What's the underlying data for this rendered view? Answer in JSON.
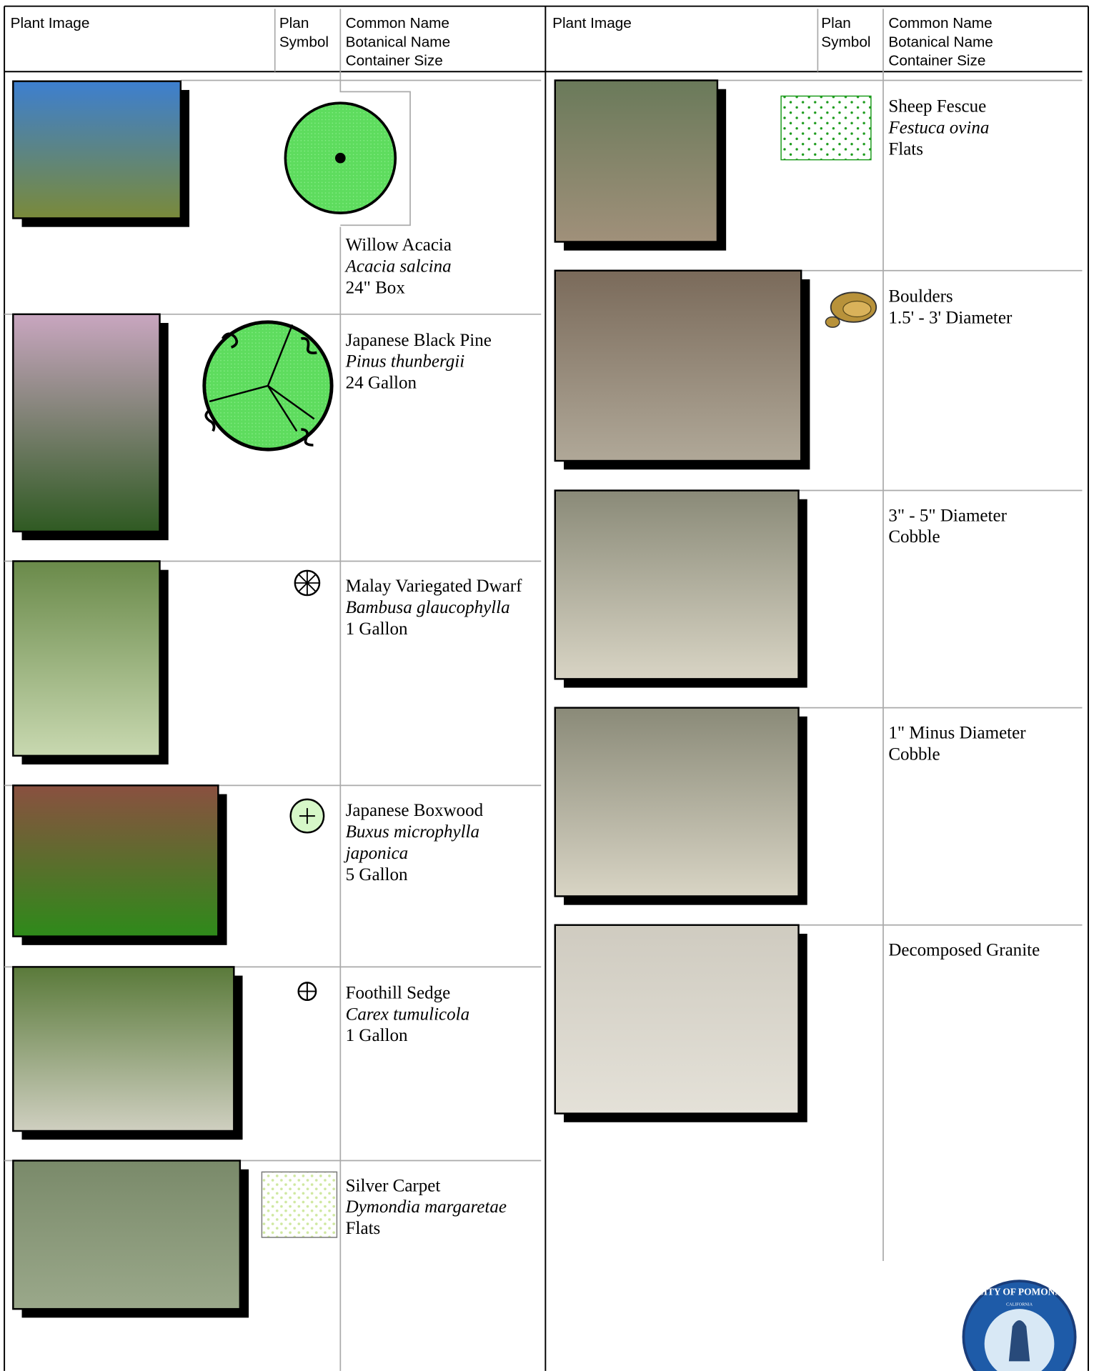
{
  "left_table": {
    "headers": {
      "image": "Plant Image",
      "symbol": [
        "Plan",
        "Symbol"
      ],
      "name": [
        "Common Name",
        "Botanical Name",
        "Container Size"
      ]
    },
    "rows": [
      {
        "common": "Willow Acacia",
        "botanical": "Acacia salcina",
        "size": "24\" Box"
      },
      {
        "common": "Japanese Black Pine",
        "botanical": "Pinus thunbergii",
        "size": "24 Gallon"
      },
      {
        "common": "Malay Variegated Dwarf",
        "botanical": "Bambusa glaucophylla",
        "size": "1 Gallon"
      },
      {
        "common": "Japanese Boxwood",
        "botanical": [
          "Buxus microphylla",
          "japonica"
        ],
        "size": "5 Gallon"
      },
      {
        "common": "Foothill Sedge",
        "botanical": "Carex tumulicola",
        "size": "1 Gallon"
      },
      {
        "common": "Silver Carpet",
        "botanical": "Dymondia margaretae",
        "size": "Flats"
      }
    ]
  },
  "right_table": {
    "headers": {
      "image": "Plant Image",
      "symbol": [
        "Plan",
        "Symbol"
      ],
      "name": [
        "Common Name",
        "Botanical Name",
        "Container Size"
      ]
    },
    "rows": [
      {
        "common": "Sheep Fescue",
        "botanical": "Festuca ovina",
        "size": "Flats"
      },
      {
        "common": "Boulders",
        "size": "1.5' - 3' Diameter"
      },
      {
        "common": "3\" - 5\" Diameter",
        "size": "Cobble"
      },
      {
        "common": "1\" Minus Diameter",
        "size": "Cobble"
      },
      {
        "common": "Decomposed Granite"
      }
    ]
  },
  "logo": {
    "text": "CITY OF POMONA",
    "state": "CALIFORNIA"
  }
}
